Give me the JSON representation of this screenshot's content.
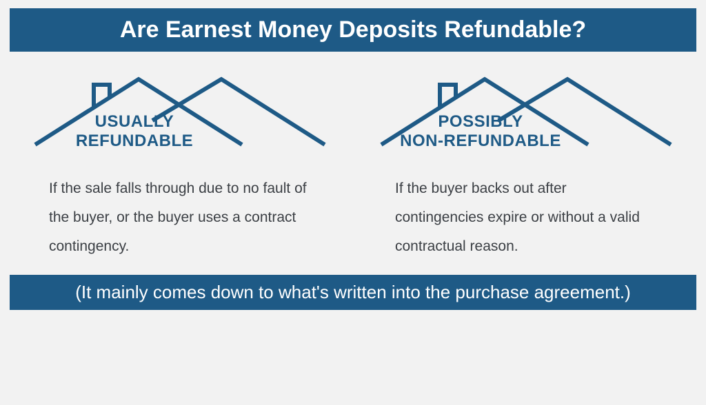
{
  "colors": {
    "banner_bg": "#1e5a86",
    "banner_text": "#ffffff",
    "heading": "#1e5a86",
    "body_text": "#3b3f44",
    "roof_stroke": "#1e5a86",
    "page_bg": "#f2f2f2"
  },
  "title": {
    "text": "Are Earnest Money Deposits Refundable?",
    "fontsize": 34
  },
  "footer": {
    "text": "(It mainly comes down to what's written into the purchase agreement.)",
    "fontsize": 26
  },
  "columns": [
    {
      "heading": "USUALLY\nREFUNDABLE",
      "heading_fontsize": 24,
      "desc": "If the sale falls through due to no fault of the buyer, or the buyer uses a contract contingency.",
      "desc_fontsize": 21
    },
    {
      "heading": "POSSIBLY\nNON-REFUNDABLE",
      "heading_fontsize": 24,
      "desc": "If the buyer backs out after contingencies expire or without a valid contractual reason.",
      "desc_fontsize": 21
    }
  ],
  "roof": {
    "stroke_width": 6
  }
}
